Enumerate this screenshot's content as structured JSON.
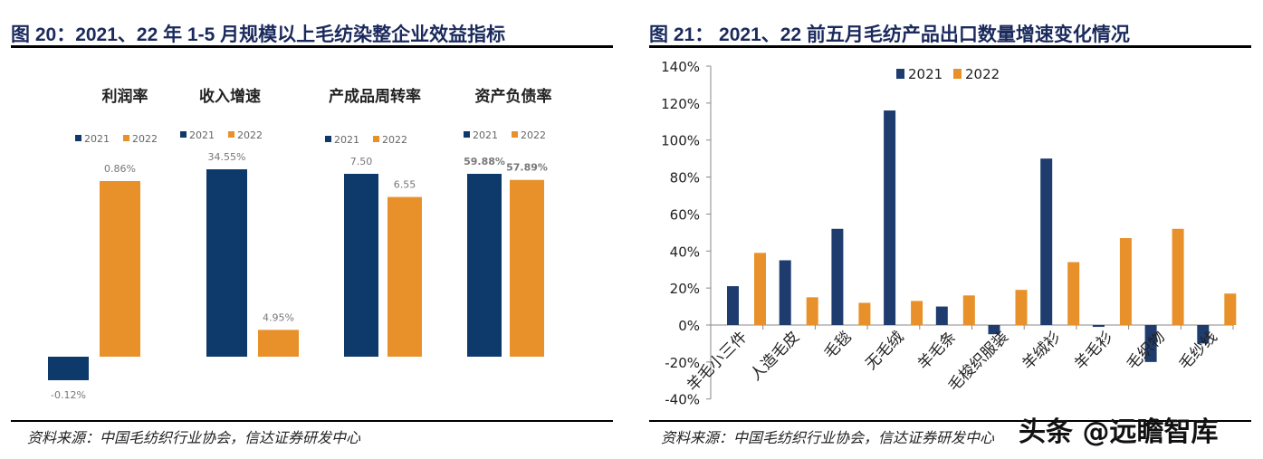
{
  "left": {
    "title": "图 20：2021、22 年 1-5 月规模以上毛纺染整企业效益指标",
    "source": "资料来源：中国毛纺织行业协会，信达证券研发中心"
  },
  "right": {
    "title": "图 21：  2021、22 前五月毛纺产品出口数量增速变化情况",
    "source": "资料来源：中国毛纺织行业协会，信达证券研发中心"
  },
  "watermark": "头条 @远瞻智库",
  "colors": {
    "s2021": "#1f3c6e",
    "s2022": "#e8912a",
    "panel2021": "#0d3a6b"
  },
  "chart_data": [
    {
      "type": "bar",
      "panels": [
        {
          "title": "利润率",
          "categories": [
            "2021",
            "2022"
          ],
          "values": [
            -0.12,
            0.86
          ],
          "labels": [
            "-0.12%",
            "0.86%"
          ]
        },
        {
          "title": "收入增速",
          "categories": [
            "2021",
            "2022"
          ],
          "values": [
            34.55,
            4.95
          ],
          "labels": [
            "34.55%",
            "4.95%"
          ]
        },
        {
          "title": "产成品周转率",
          "categories": [
            "2021",
            "2022"
          ],
          "values": [
            7.5,
            6.55
          ],
          "labels": [
            "7.50",
            "6.55"
          ]
        },
        {
          "title": "资产负债率",
          "categories": [
            "2021",
            "2022"
          ],
          "values": [
            59.88,
            57.89
          ],
          "labels": [
            "59.88%",
            "57.89%"
          ]
        }
      ],
      "legend": [
        "2021",
        "2022"
      ]
    },
    {
      "type": "bar",
      "categories": [
        "羊毛小三件",
        "人造毛皮",
        "毛毯",
        "无毛绒",
        "羊毛条",
        "毛梭织服装",
        "羊绒衫",
        "羊毛衫",
        "毛织物",
        "毛纱线"
      ],
      "series": [
        {
          "name": "2021",
          "values": [
            21,
            35,
            52,
            116,
            10,
            -5,
            90,
            -1,
            -20,
            -10
          ]
        },
        {
          "name": "2022",
          "values": [
            39,
            15,
            12,
            13,
            16,
            19,
            34,
            47,
            52,
            17
          ]
        }
      ],
      "ylim": [
        -40,
        140
      ],
      "yticks": [
        "-40%",
        "-20%",
        "0%",
        "20%",
        "40%",
        "60%",
        "80%",
        "100%",
        "120%",
        "140%"
      ],
      "legend": "top",
      "grid": false
    }
  ]
}
